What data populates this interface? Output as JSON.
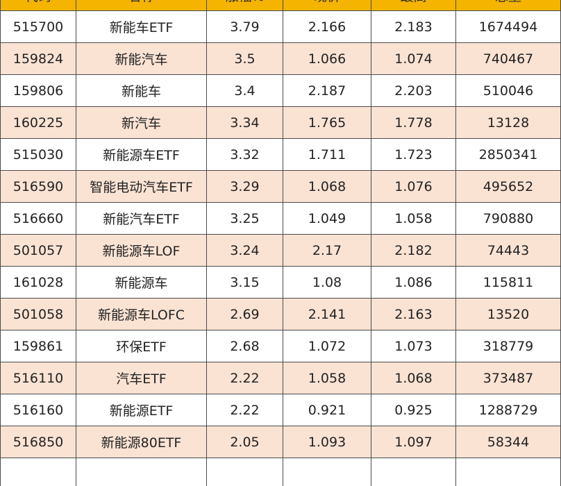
{
  "columns": [
    "代码",
    "名称",
    "涨幅%",
    "现价",
    "最高",
    "总量"
  ],
  "rows": [
    [
      "515700",
      "新能车ETF",
      "3.79",
      "2.166",
      "2.183",
      "1674494"
    ],
    [
      "159824",
      "新能汽车",
      "3.5",
      "1.066",
      "1.074",
      "740467"
    ],
    [
      "159806",
      "新能车",
      "3.4",
      "2.187",
      "2.203",
      "510046"
    ],
    [
      "160225",
      "新汽车",
      "3.34",
      "1.765",
      "1.778",
      "13128"
    ],
    [
      "515030",
      "新能源车ETF",
      "3.32",
      "1.711",
      "1.723",
      "2850341"
    ],
    [
      "516590",
      "智能电动汽车ETF",
      "3.29",
      "1.068",
      "1.076",
      "495652"
    ],
    [
      "516660",
      "新能汽车ETF",
      "3.25",
      "1.049",
      "1.058",
      "790880"
    ],
    [
      "501057",
      "新能源车LOF",
      "3.24",
      "2.17",
      "2.182",
      "74443"
    ],
    [
      "161028",
      "新能源车",
      "3.15",
      "1.08",
      "1.086",
      "115811"
    ],
    [
      "501058",
      "新能源车LOFC",
      "2.69",
      "2.141",
      "2.163",
      "13520"
    ],
    [
      "159861",
      "环保ETF",
      "2.68",
      "1.072",
      "1.073",
      "318779"
    ],
    [
      "516110",
      "汽车ETF",
      "2.22",
      "1.058",
      "1.068",
      "373487"
    ],
    [
      "516160",
      "新能源ETF",
      "2.22",
      "0.921",
      "0.925",
      "1288729"
    ],
    [
      "516850",
      "新能源80ETF",
      "2.05",
      "1.093",
      "1.097",
      "58344"
    ]
  ],
  "colors": {
    "header_bg": "#f4b400",
    "stripe_bg": "#fbe3d4",
    "border": "#4a4a4a"
  }
}
